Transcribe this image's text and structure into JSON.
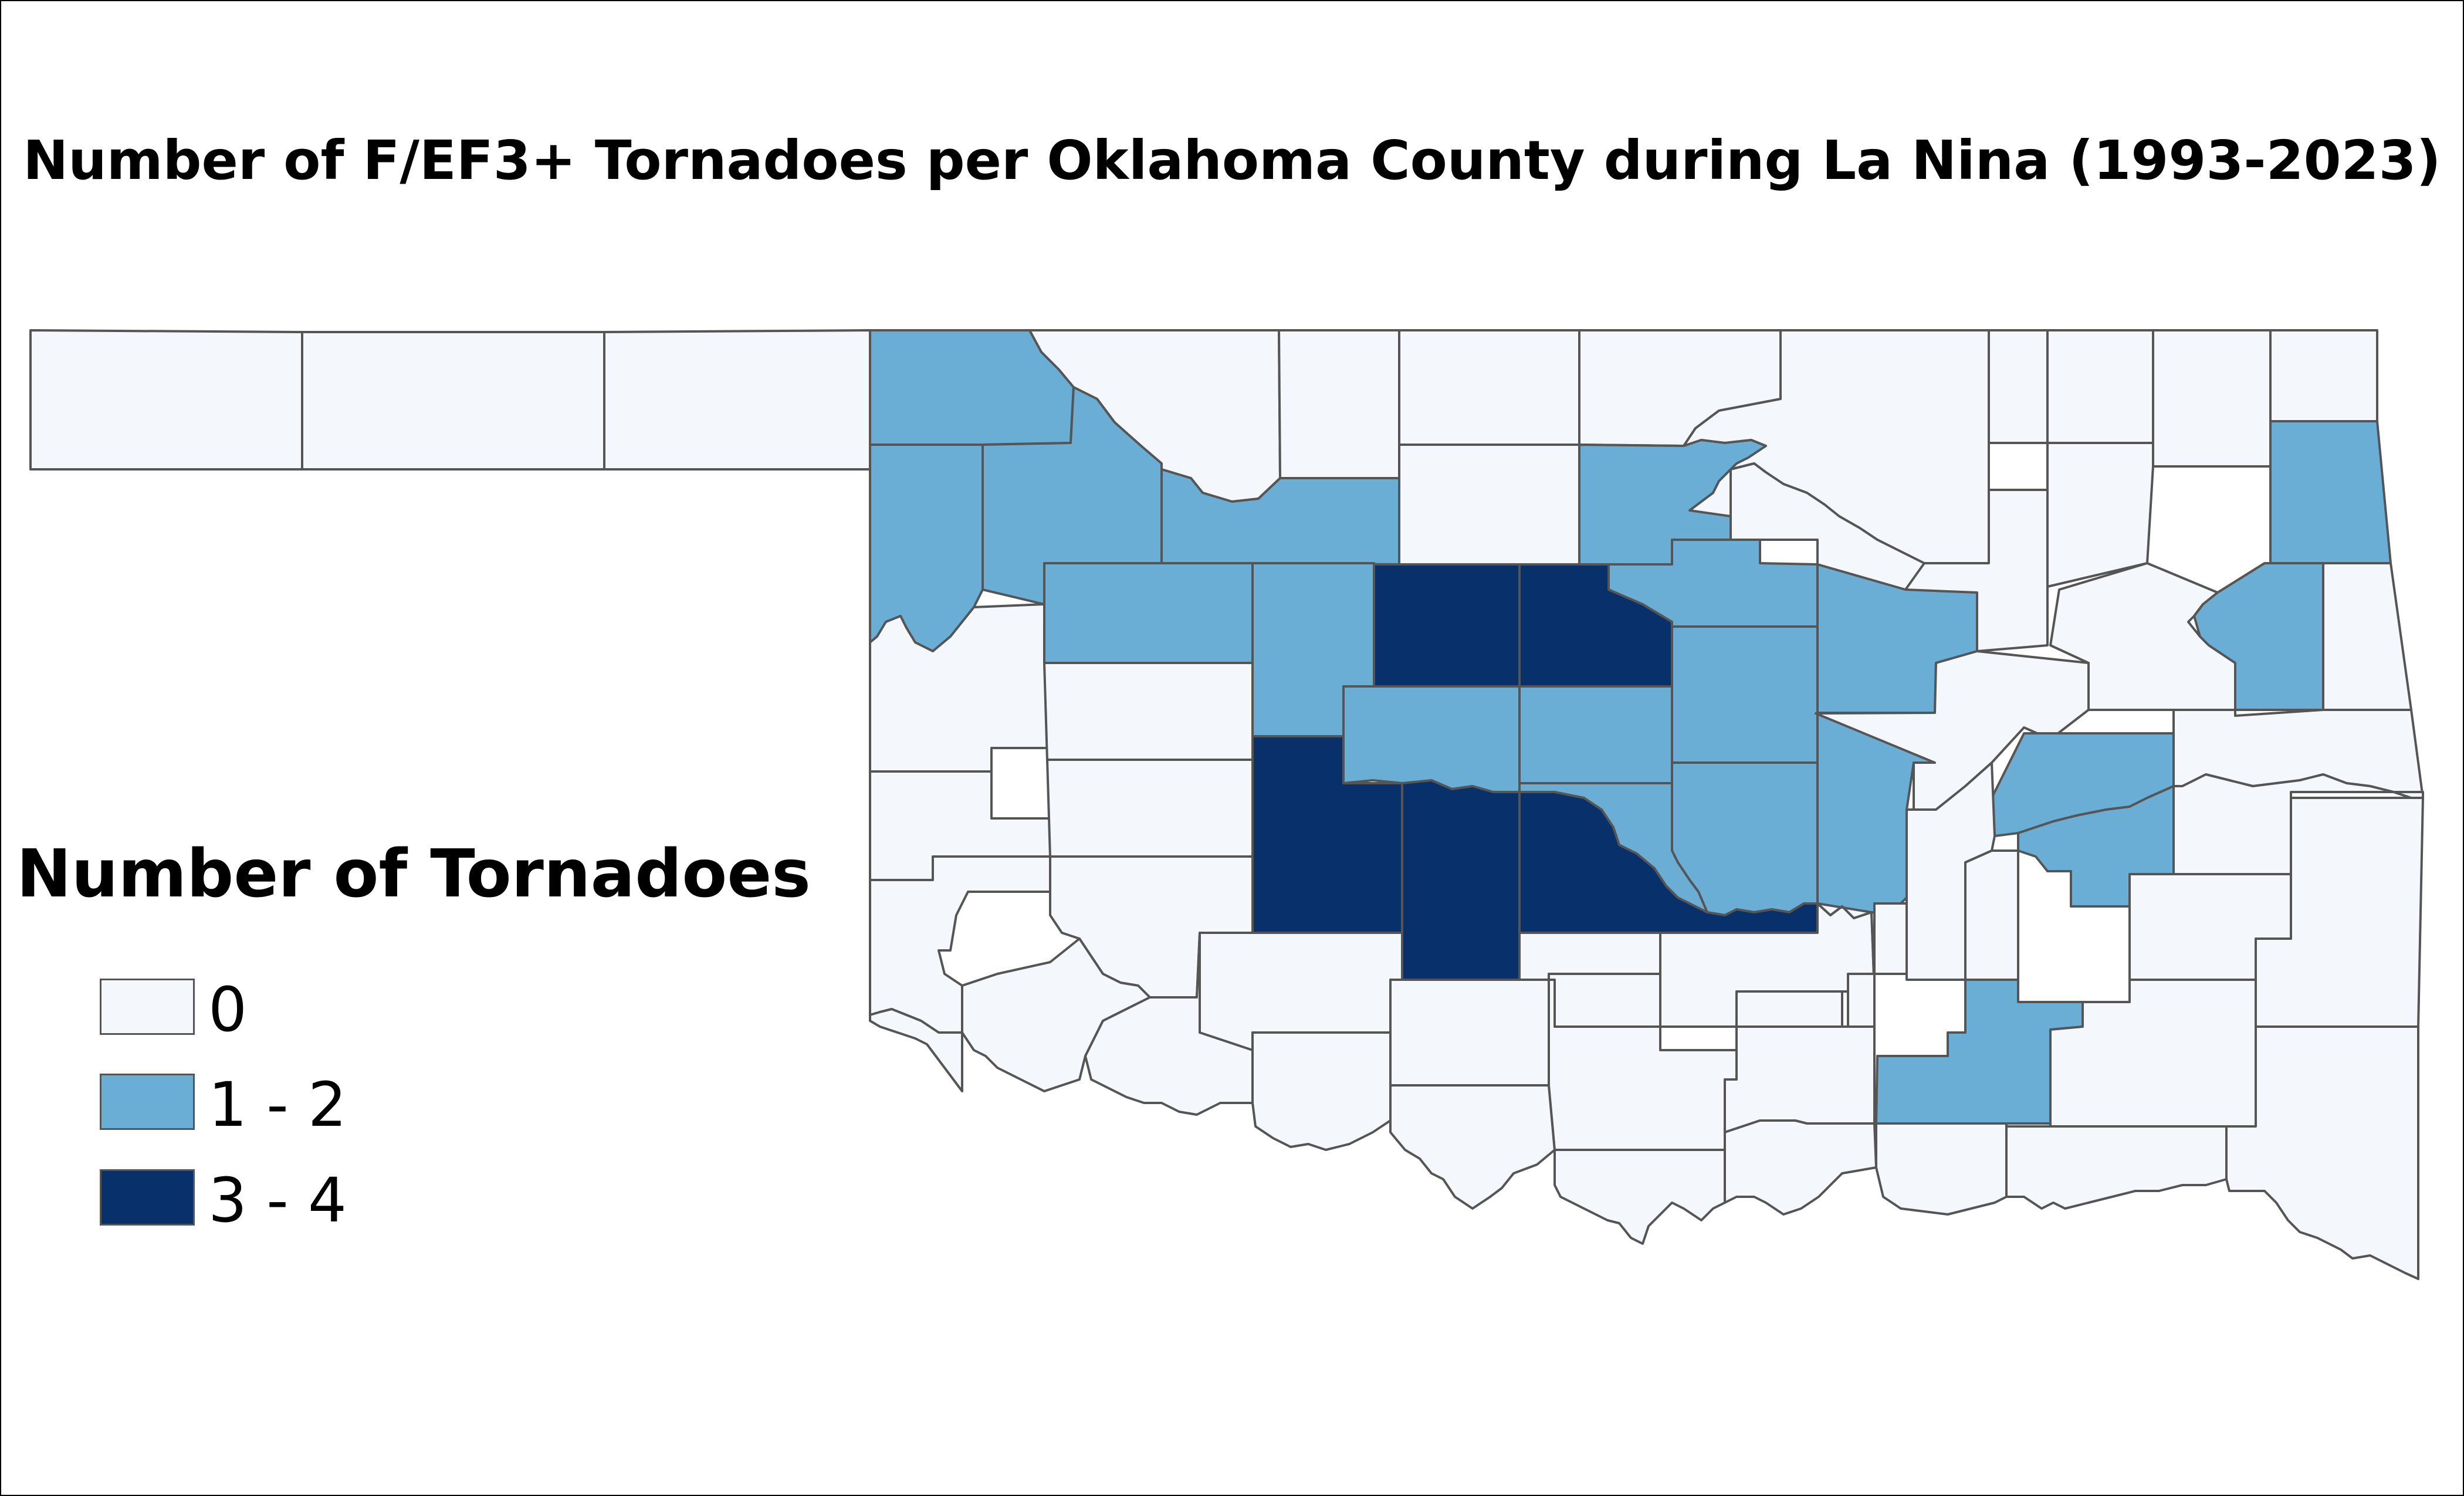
{
  "title": "Number of F/EF3+ Tornadoes per Oklahoma County during La Nina (1993-2023)",
  "legend": {
    "title": "Number of Tornadoes",
    "items": [
      {
        "label": "0",
        "color": "#f4f8fd"
      },
      {
        "label": "1 - 2",
        "color": "#6aaed6"
      },
      {
        "label": "3 - 4",
        "color": "#08306b"
      }
    ]
  },
  "colors": {
    "border": "#555555",
    "class0": "#f4f8fd",
    "class1": "#6aaed6",
    "class2": "#08306b"
  }
}
